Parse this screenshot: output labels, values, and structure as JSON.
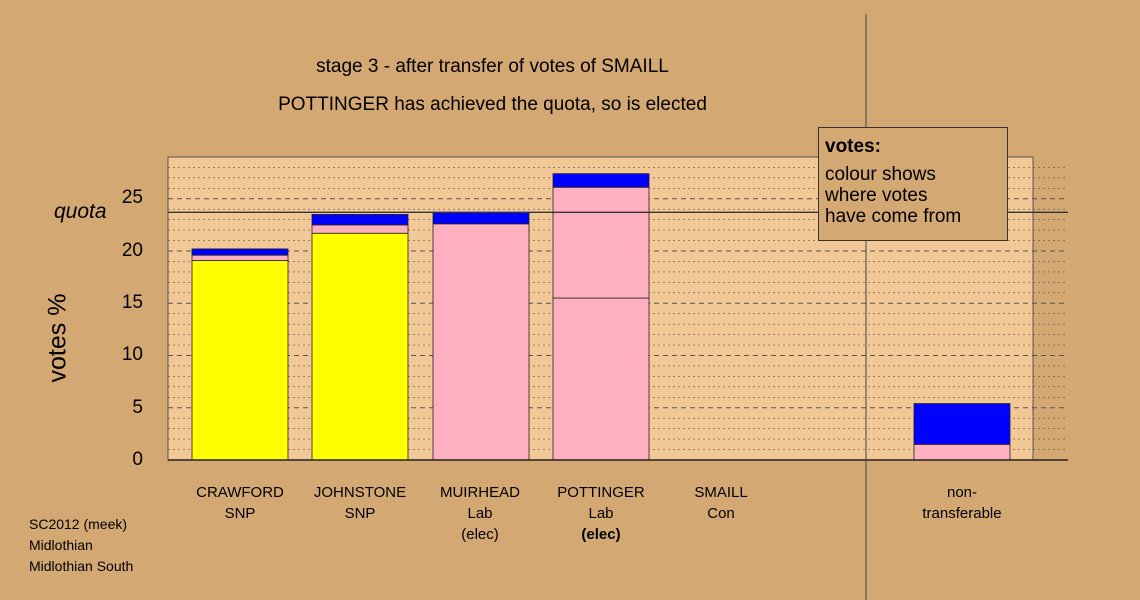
{
  "title_line1": "stage 3 - after transfer of votes of SMAILL",
  "title_line2": "POTTINGER has achieved the quota, so is elected",
  "ylabel": "votes %",
  "quota_label": "quota",
  "legend": {
    "title": "votes:",
    "lines": [
      "colour shows",
      "where votes",
      "have come from"
    ]
  },
  "footer": [
    "SC2012 (meek)",
    "Midlothian",
    "Midlothian South"
  ],
  "categories": [
    {
      "name": "CRAWFORD",
      "party": "SNP",
      "status": ""
    },
    {
      "name": "JOHNSTONE",
      "party": "SNP",
      "status": ""
    },
    {
      "name": "MUIRHEAD",
      "party": "Lab",
      "status": "(elec)"
    },
    {
      "name": "POTTINGER",
      "party": "Lab",
      "status": "(elec)"
    },
    {
      "name": "SMAILL",
      "party": "Con",
      "status": ""
    }
  ],
  "nontransferable_label": [
    "non-",
    "transferable"
  ],
  "colors": {
    "background": "#d4a873",
    "snp": "#ffff00",
    "lab": "#ffb0c0",
    "con": "#0000ff"
  },
  "chart_data": {
    "type": "bar",
    "stacked": true,
    "ylim": [
      0,
      28
    ],
    "yticks": [
      0,
      5,
      10,
      15,
      20,
      25
    ],
    "quota": 23.7,
    "grid": "dotted horizontal",
    "bars": [
      {
        "category": "CRAWFORD",
        "segments": [
          {
            "source": "SNP",
            "color": "#ffff00",
            "value": 19.1
          },
          {
            "source": "Lab",
            "color": "#ffb0c0",
            "value": 0.5
          },
          {
            "source": "Con",
            "color": "#0000ff",
            "value": 0.6
          }
        ]
      },
      {
        "category": "JOHNSTONE",
        "segments": [
          {
            "source": "SNP",
            "color": "#ffff00",
            "value": 21.7
          },
          {
            "source": "Lab",
            "color": "#ffb0c0",
            "value": 0.8
          },
          {
            "source": "Con",
            "color": "#0000ff",
            "value": 1.0
          }
        ]
      },
      {
        "category": "MUIRHEAD",
        "segments": [
          {
            "source": "Lab",
            "color": "#ffb0c0",
            "value": 22.6
          },
          {
            "source": "Con",
            "color": "#0000ff",
            "value": 1.1
          }
        ]
      },
      {
        "category": "POTTINGER",
        "segments": [
          {
            "source": "Lab",
            "color": "#ffb0c0",
            "value": 15.5
          },
          {
            "source": "Lab",
            "color": "#ffb0c0",
            "value": 10.6
          },
          {
            "source": "Con",
            "color": "#0000ff",
            "value": 1.3
          }
        ]
      },
      {
        "category": "SMAILL",
        "segments": []
      },
      {
        "category": "non-transferable",
        "segments": [
          {
            "source": "Lab",
            "color": "#ffb0c0",
            "value": 1.5
          },
          {
            "source": "Con",
            "color": "#0000ff",
            "value": 3.9
          }
        ]
      }
    ]
  }
}
